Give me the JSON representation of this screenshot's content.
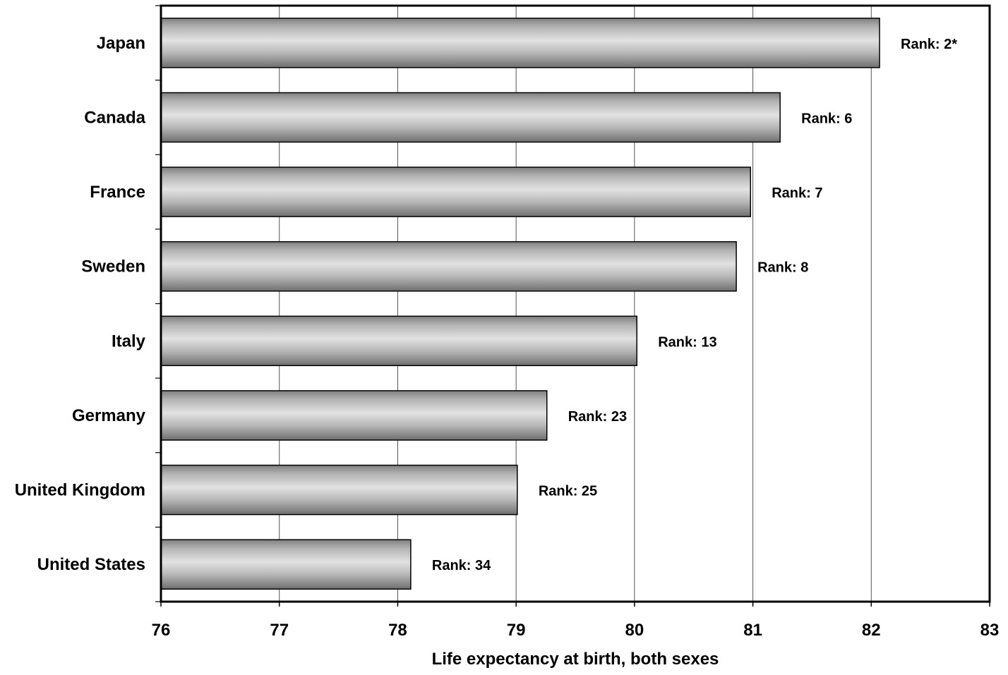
{
  "chart_data": {
    "type": "bar",
    "orientation": "horizontal",
    "categories": [
      "Japan",
      "Canada",
      "France",
      "Sweden",
      "Italy",
      "Germany",
      "United Kingdom",
      "United States"
    ],
    "values": [
      82.07,
      81.23,
      80.98,
      80.86,
      80.02,
      79.26,
      79.01,
      78.11
    ],
    "data_labels": [
      "Rank: 2*",
      "Rank: 6",
      "Rank: 7",
      "Rank: 8",
      "Rank: 13",
      "Rank: 23",
      "Rank: 25",
      "Rank: 34"
    ],
    "title": "",
    "xlabel": "Life expectancy at birth, both sexes",
    "ylabel": "",
    "xlim": [
      76,
      83
    ],
    "xticks": [
      76,
      77,
      78,
      79,
      80,
      81,
      82,
      83
    ],
    "grid": "vertical",
    "bar_color": "#a9a9a9"
  }
}
